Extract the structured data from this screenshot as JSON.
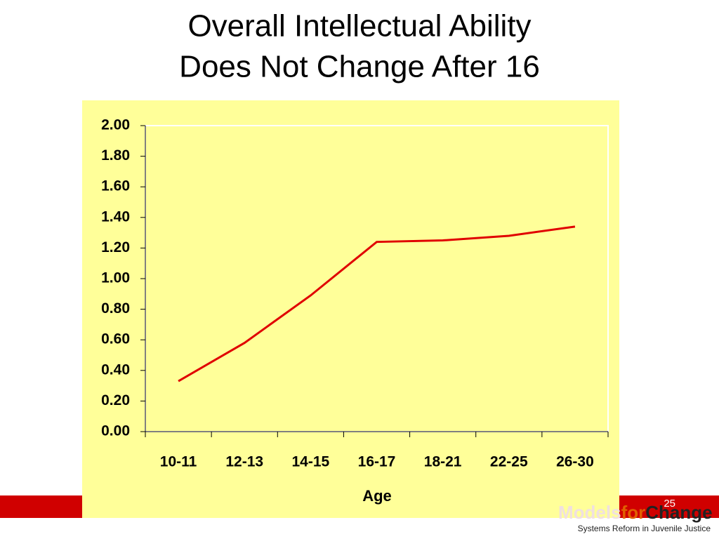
{
  "chart_data": {
    "type": "line",
    "title": [
      "Overall Intellectual Ability",
      "Does Not Change After 16"
    ],
    "x_label": "Age",
    "categories": [
      "10-11",
      "12-13",
      "14-15",
      "16-17",
      "18-21",
      "22-25",
      "26-30"
    ],
    "series": [
      {
        "color": "#e00000",
        "values": [
          0.33,
          0.58,
          0.89,
          1.24,
          1.25,
          1.28,
          1.34
        ]
      }
    ],
    "ylim": [
      0,
      2
    ],
    "yticks": [
      {
        "value": 0,
        "label": "0.00"
      },
      {
        "value": 0.2,
        "label": "0.20"
      },
      {
        "value": 0.4,
        "label": "0.40"
      },
      {
        "value": 0.6,
        "label": "0.60"
      },
      {
        "value": 0.8,
        "label": "0.80"
      },
      {
        "value": 1,
        "label": "1.00"
      },
      {
        "value": 1.2,
        "label": "1.20"
      },
      {
        "value": 1.4,
        "label": "1.40"
      },
      {
        "value": 1.6,
        "label": "1.60"
      },
      {
        "value": 1.8,
        "label": "1.80"
      },
      {
        "value": 2,
        "label": "2.00"
      }
    ],
    "grid": false
  },
  "footer": {
    "logo": [
      "Models",
      "for",
      "Change"
    ],
    "tagline": "Systems Reform in Juvenile Justice",
    "page_number": "25"
  }
}
